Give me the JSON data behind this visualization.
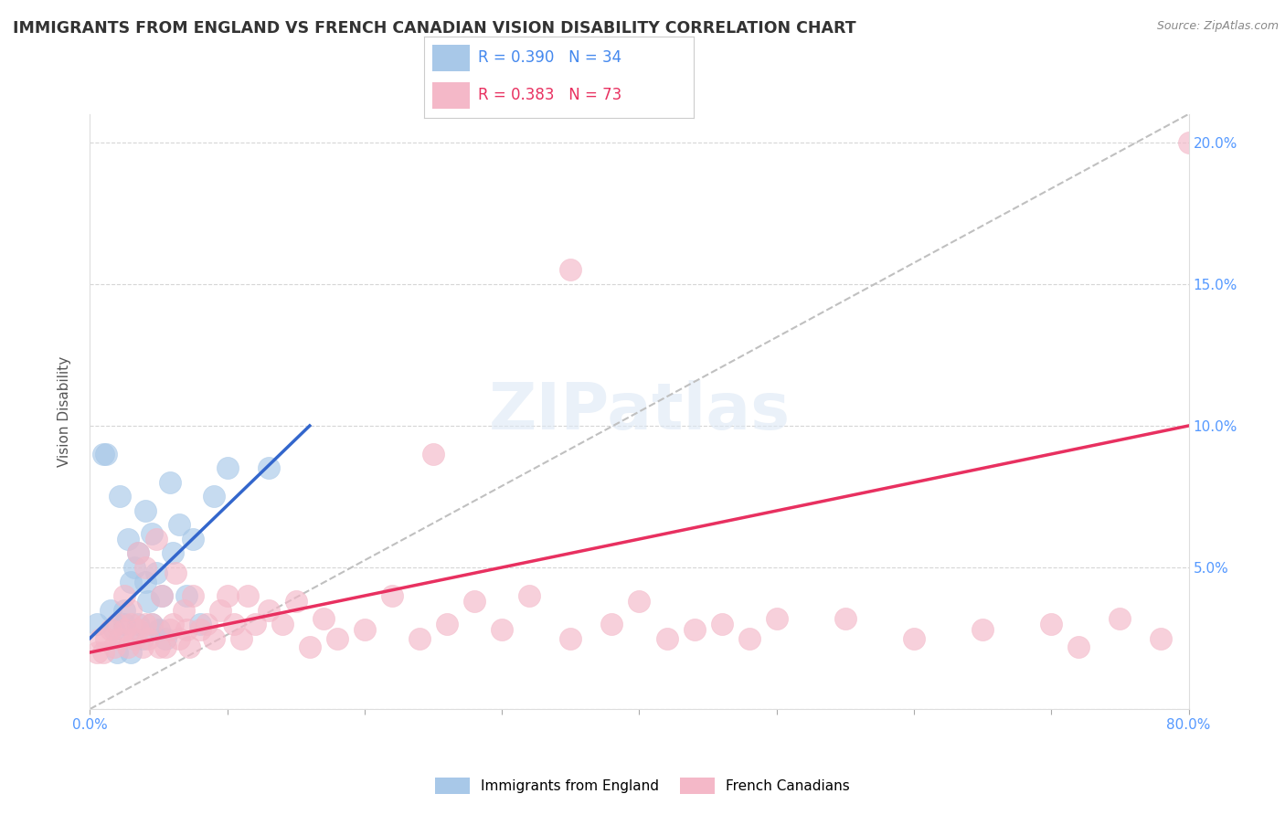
{
  "title": "IMMIGRANTS FROM ENGLAND VS FRENCH CANADIAN VISION DISABILITY CORRELATION CHART",
  "source": "Source: ZipAtlas.com",
  "ylabel": "Vision Disability",
  "legend_blue_r": "R = 0.390",
  "legend_blue_n": "N = 34",
  "legend_pink_r": "R = 0.383",
  "legend_pink_n": "N = 73",
  "legend_blue_label": "Immigrants from England",
  "legend_pink_label": "French Canadians",
  "blue_color": "#a8c8e8",
  "pink_color": "#f4b8c8",
  "blue_line_color": "#3366cc",
  "pink_line_color": "#e83060",
  "gray_line_color": "#c0c0c0",
  "yticks_right": [
    0.0,
    0.05,
    0.1,
    0.15,
    0.2
  ],
  "ytick_labels_right": [
    "",
    "5.0%",
    "10.0%",
    "15.0%",
    "20.0%"
  ],
  "blue_x": [
    0.005,
    0.01,
    0.012,
    0.015,
    0.018,
    0.02,
    0.022,
    0.025,
    0.025,
    0.028,
    0.03,
    0.03,
    0.032,
    0.035,
    0.035,
    0.038,
    0.04,
    0.04,
    0.042,
    0.045,
    0.045,
    0.048,
    0.05,
    0.052,
    0.055,
    0.058,
    0.06,
    0.065,
    0.07,
    0.075,
    0.08,
    0.09,
    0.1,
    0.13
  ],
  "blue_y": [
    0.03,
    0.09,
    0.09,
    0.035,
    0.028,
    0.02,
    0.075,
    0.03,
    0.035,
    0.06,
    0.045,
    0.02,
    0.05,
    0.03,
    0.055,
    0.025,
    0.045,
    0.07,
    0.038,
    0.062,
    0.03,
    0.048,
    0.028,
    0.04,
    0.025,
    0.08,
    0.055,
    0.065,
    0.04,
    0.06,
    0.03,
    0.075,
    0.085,
    0.085
  ],
  "pink_x": [
    0.005,
    0.008,
    0.01,
    0.012,
    0.015,
    0.018,
    0.02,
    0.022,
    0.025,
    0.025,
    0.028,
    0.03,
    0.03,
    0.032,
    0.035,
    0.035,
    0.038,
    0.04,
    0.04,
    0.042,
    0.045,
    0.048,
    0.05,
    0.052,
    0.055,
    0.058,
    0.06,
    0.062,
    0.065,
    0.068,
    0.07,
    0.072,
    0.075,
    0.08,
    0.085,
    0.09,
    0.095,
    0.1,
    0.105,
    0.11,
    0.115,
    0.12,
    0.13,
    0.14,
    0.15,
    0.16,
    0.17,
    0.18,
    0.2,
    0.22,
    0.24,
    0.26,
    0.28,
    0.3,
    0.32,
    0.35,
    0.38,
    0.4,
    0.42,
    0.44,
    0.46,
    0.48,
    0.5,
    0.55,
    0.6,
    0.65,
    0.7,
    0.72,
    0.75,
    0.78,
    0.8,
    0.35,
    0.25
  ],
  "pink_y": [
    0.02,
    0.025,
    0.02,
    0.025,
    0.028,
    0.022,
    0.03,
    0.025,
    0.028,
    0.04,
    0.022,
    0.03,
    0.035,
    0.025,
    0.028,
    0.055,
    0.022,
    0.03,
    0.05,
    0.025,
    0.03,
    0.06,
    0.022,
    0.04,
    0.022,
    0.028,
    0.03,
    0.048,
    0.025,
    0.035,
    0.028,
    0.022,
    0.04,
    0.028,
    0.03,
    0.025,
    0.035,
    0.04,
    0.03,
    0.025,
    0.04,
    0.03,
    0.035,
    0.03,
    0.038,
    0.022,
    0.032,
    0.025,
    0.028,
    0.04,
    0.025,
    0.03,
    0.038,
    0.028,
    0.04,
    0.025,
    0.03,
    0.038,
    0.025,
    0.028,
    0.03,
    0.025,
    0.032,
    0.032,
    0.025,
    0.028,
    0.03,
    0.022,
    0.032,
    0.025,
    0.2,
    0.155,
    0.09
  ],
  "xmin": 0.0,
  "xmax": 0.8,
  "ymin": 0.0,
  "ymax": 0.21,
  "blue_line_x0": 0.0,
  "blue_line_y0": 0.025,
  "blue_line_x1": 0.16,
  "blue_line_y1": 0.1,
  "pink_line_x0": 0.0,
  "pink_line_y0": 0.02,
  "pink_line_x1": 0.8,
  "pink_line_y1": 0.1,
  "gray_line_x0": 0.0,
  "gray_line_y0": 0.0,
  "gray_line_x1": 0.8,
  "gray_line_y1": 0.21
}
